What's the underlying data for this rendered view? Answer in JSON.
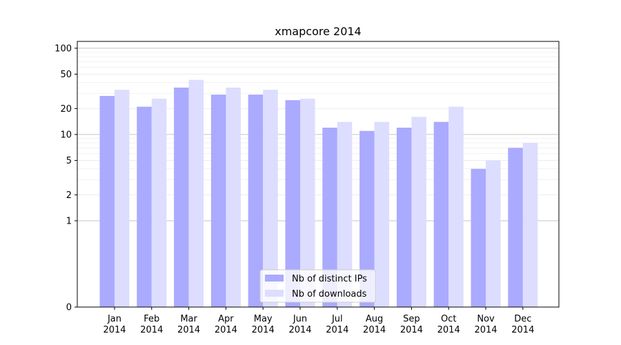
{
  "chart_data": {
    "type": "bar",
    "title": "xmapcore 2014",
    "xlabel": "",
    "ylabel": "",
    "yscale": "symlog",
    "ylim": [
      0,
      120
    ],
    "yticks": [
      0,
      1,
      2,
      5,
      10,
      20,
      50,
      100
    ],
    "grid": true,
    "legend_position": "lower-center",
    "categories": [
      {
        "month": "Jan",
        "year": "2014"
      },
      {
        "month": "Feb",
        "year": "2014"
      },
      {
        "month": "Mar",
        "year": "2014"
      },
      {
        "month": "Apr",
        "year": "2014"
      },
      {
        "month": "May",
        "year": "2014"
      },
      {
        "month": "Jun",
        "year": "2014"
      },
      {
        "month": "Jul",
        "year": "2014"
      },
      {
        "month": "Aug",
        "year": "2014"
      },
      {
        "month": "Sep",
        "year": "2014"
      },
      {
        "month": "Oct",
        "year": "2014"
      },
      {
        "month": "Nov",
        "year": "2014"
      },
      {
        "month": "Dec",
        "year": "2014"
      }
    ],
    "series": [
      {
        "name": "Nb of distinct IPs",
        "color": "#aaaaff",
        "values": [
          28,
          21,
          35,
          29,
          29,
          25,
          12,
          11,
          12,
          14,
          4,
          7
        ]
      },
      {
        "name": "Nb of downloads",
        "color": "#ddddff",
        "values": [
          33,
          26,
          43,
          35,
          33,
          26,
          14,
          14,
          16,
          21,
          5,
          8
        ]
      }
    ]
  }
}
